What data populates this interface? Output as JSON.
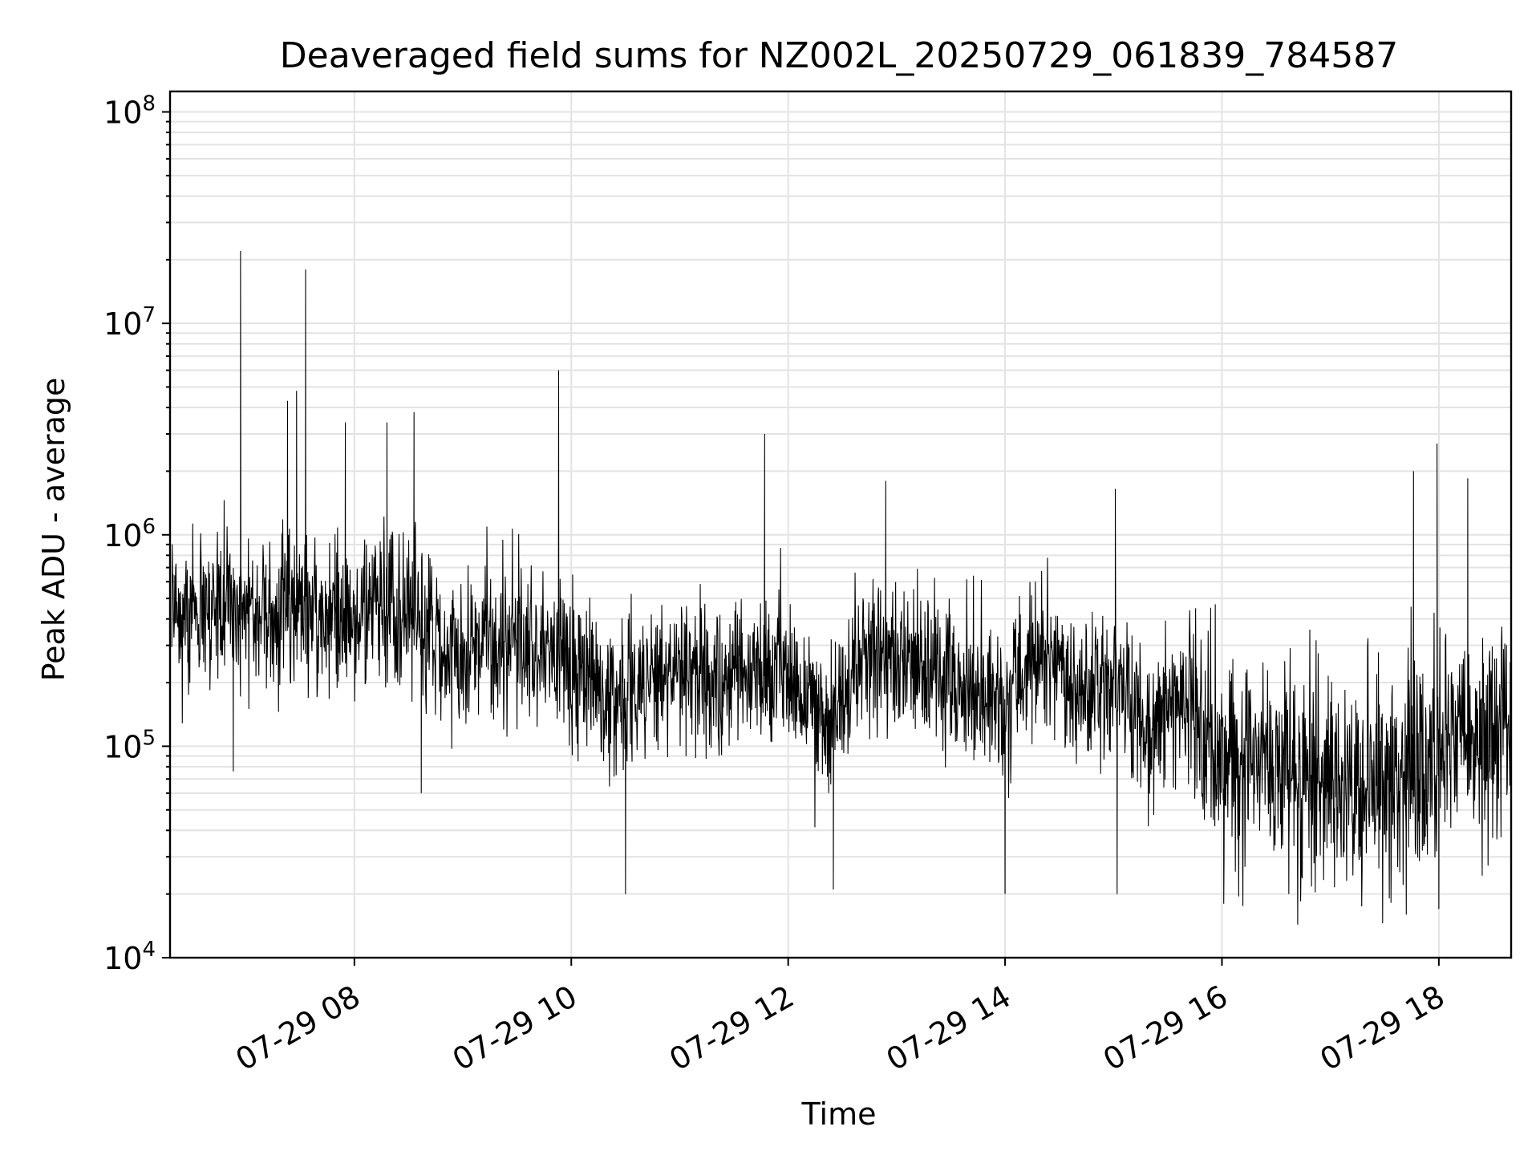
{
  "chart_data": {
    "type": "line",
    "title": "Deaveraged field sums for NZ002L_20250729_061839_784587",
    "xlabel": "Time",
    "ylabel": "Peak ADU - average",
    "yscale": "log",
    "ylim": [
      10000,
      125000000
    ],
    "xlim": [
      "2025-07-29 06:18",
      "2025-07-29 18:40"
    ],
    "grid": true,
    "legend": "none",
    "line_color": "#000000",
    "grid_color": "#e3e3e3",
    "x_tick_labels": [
      {
        "label": "07-29 08",
        "value": "2025-07-29 08:00"
      },
      {
        "label": "07-29 10",
        "value": "2025-07-29 10:00"
      },
      {
        "label": "07-29 12",
        "value": "2025-07-29 12:00"
      },
      {
        "label": "07-29 14",
        "value": "2025-07-29 14:00"
      },
      {
        "label": "07-29 16",
        "value": "2025-07-29 16:00"
      },
      {
        "label": "07-29 18",
        "value": "2025-07-29 18:00"
      }
    ],
    "y_tick_labels": [
      {
        "base": "10",
        "exp": "4",
        "value": 10000
      },
      {
        "base": "10",
        "exp": "5",
        "value": 100000
      },
      {
        "base": "10",
        "exp": "6",
        "value": 1000000
      },
      {
        "base": "10",
        "exp": "7",
        "value": 10000000
      },
      {
        "base": "10",
        "exp": "8",
        "value": 100000000
      }
    ],
    "series": [
      {
        "x": [
          "2025-07-29 06:20",
          "2025-07-29 06:40",
          "2025-07-29 07:00",
          "2025-07-29 07:20",
          "2025-07-29 07:40",
          "2025-07-29 08:00",
          "2025-07-29 08:20",
          "2025-07-29 08:40",
          "2025-07-29 09:00",
          "2025-07-29 09:20",
          "2025-07-29 09:40",
          "2025-07-29 10:00",
          "2025-07-29 10:20",
          "2025-07-29 10:40",
          "2025-07-29 11:00",
          "2025-07-29 11:20",
          "2025-07-29 11:40",
          "2025-07-29 12:00",
          "2025-07-29 12:20",
          "2025-07-29 12:40",
          "2025-07-29 13:00",
          "2025-07-29 13:20",
          "2025-07-29 13:40",
          "2025-07-29 14:00",
          "2025-07-29 14:20",
          "2025-07-29 14:40",
          "2025-07-29 15:00",
          "2025-07-29 15:20",
          "2025-07-29 15:40",
          "2025-07-29 16:00",
          "2025-07-29 16:20",
          "2025-07-29 16:40",
          "2025-07-29 17:00",
          "2025-07-29 17:20",
          "2025-07-29 17:40",
          "2025-07-29 18:00",
          "2025-07-29 18:20",
          "2025-07-29 18:38"
        ],
        "y": [
          380000,
          420000,
          450000,
          430000,
          400000,
          420000,
          500000,
          380000,
          280000,
          330000,
          300000,
          250000,
          180000,
          210000,
          240000,
          200000,
          220000,
          230000,
          120000,
          280000,
          260000,
          230000,
          210000,
          140000,
          300000,
          170000,
          210000,
          120000,
          180000,
          80000,
          90000,
          70000,
          75000,
          65000,
          85000,
          90000,
          100000,
          120000
        ]
      }
    ],
    "spikes": [
      {
        "x": "2025-07-29 06:57",
        "y": 22000000
      },
      {
        "x": "2025-07-29 07:33",
        "y": 18000000
      },
      {
        "x": "2025-07-29 07:23",
        "y": 4300000
      },
      {
        "x": "2025-07-29 07:28",
        "y": 4800000
      },
      {
        "x": "2025-07-29 07:55",
        "y": 3400000
      },
      {
        "x": "2025-07-29 08:18",
        "y": 3400000
      },
      {
        "x": "2025-07-29 08:33",
        "y": 3800000
      },
      {
        "x": "2025-07-29 09:53",
        "y": 6000000
      },
      {
        "x": "2025-07-29 11:47",
        "y": 3000000
      },
      {
        "x": "2025-07-29 12:54",
        "y": 1800000
      },
      {
        "x": "2025-07-29 15:01",
        "y": 1650000
      },
      {
        "x": "2025-07-29 17:46",
        "y": 2000000
      },
      {
        "x": "2025-07-29 17:59",
        "y": 2700000
      },
      {
        "x": "2025-07-29 18:16",
        "y": 1850000
      }
    ],
    "dips": [
      {
        "x": "2025-07-29 06:53",
        "y": 76000
      },
      {
        "x": "2025-07-29 08:37",
        "y": 60000
      },
      {
        "x": "2025-07-29 10:30",
        "y": 20000
      },
      {
        "x": "2025-07-29 12:25",
        "y": 21000
      },
      {
        "x": "2025-07-29 14:00",
        "y": 20000
      },
      {
        "x": "2025-07-29 15:02",
        "y": 20000
      },
      {
        "x": "2025-07-29 16:01",
        "y": 18000
      },
      {
        "x": "2025-07-29 16:37",
        "y": 20000
      },
      {
        "x": "2025-07-29 17:42",
        "y": 16000
      },
      {
        "x": "2025-07-29 18:00",
        "y": 17000
      }
    ]
  }
}
